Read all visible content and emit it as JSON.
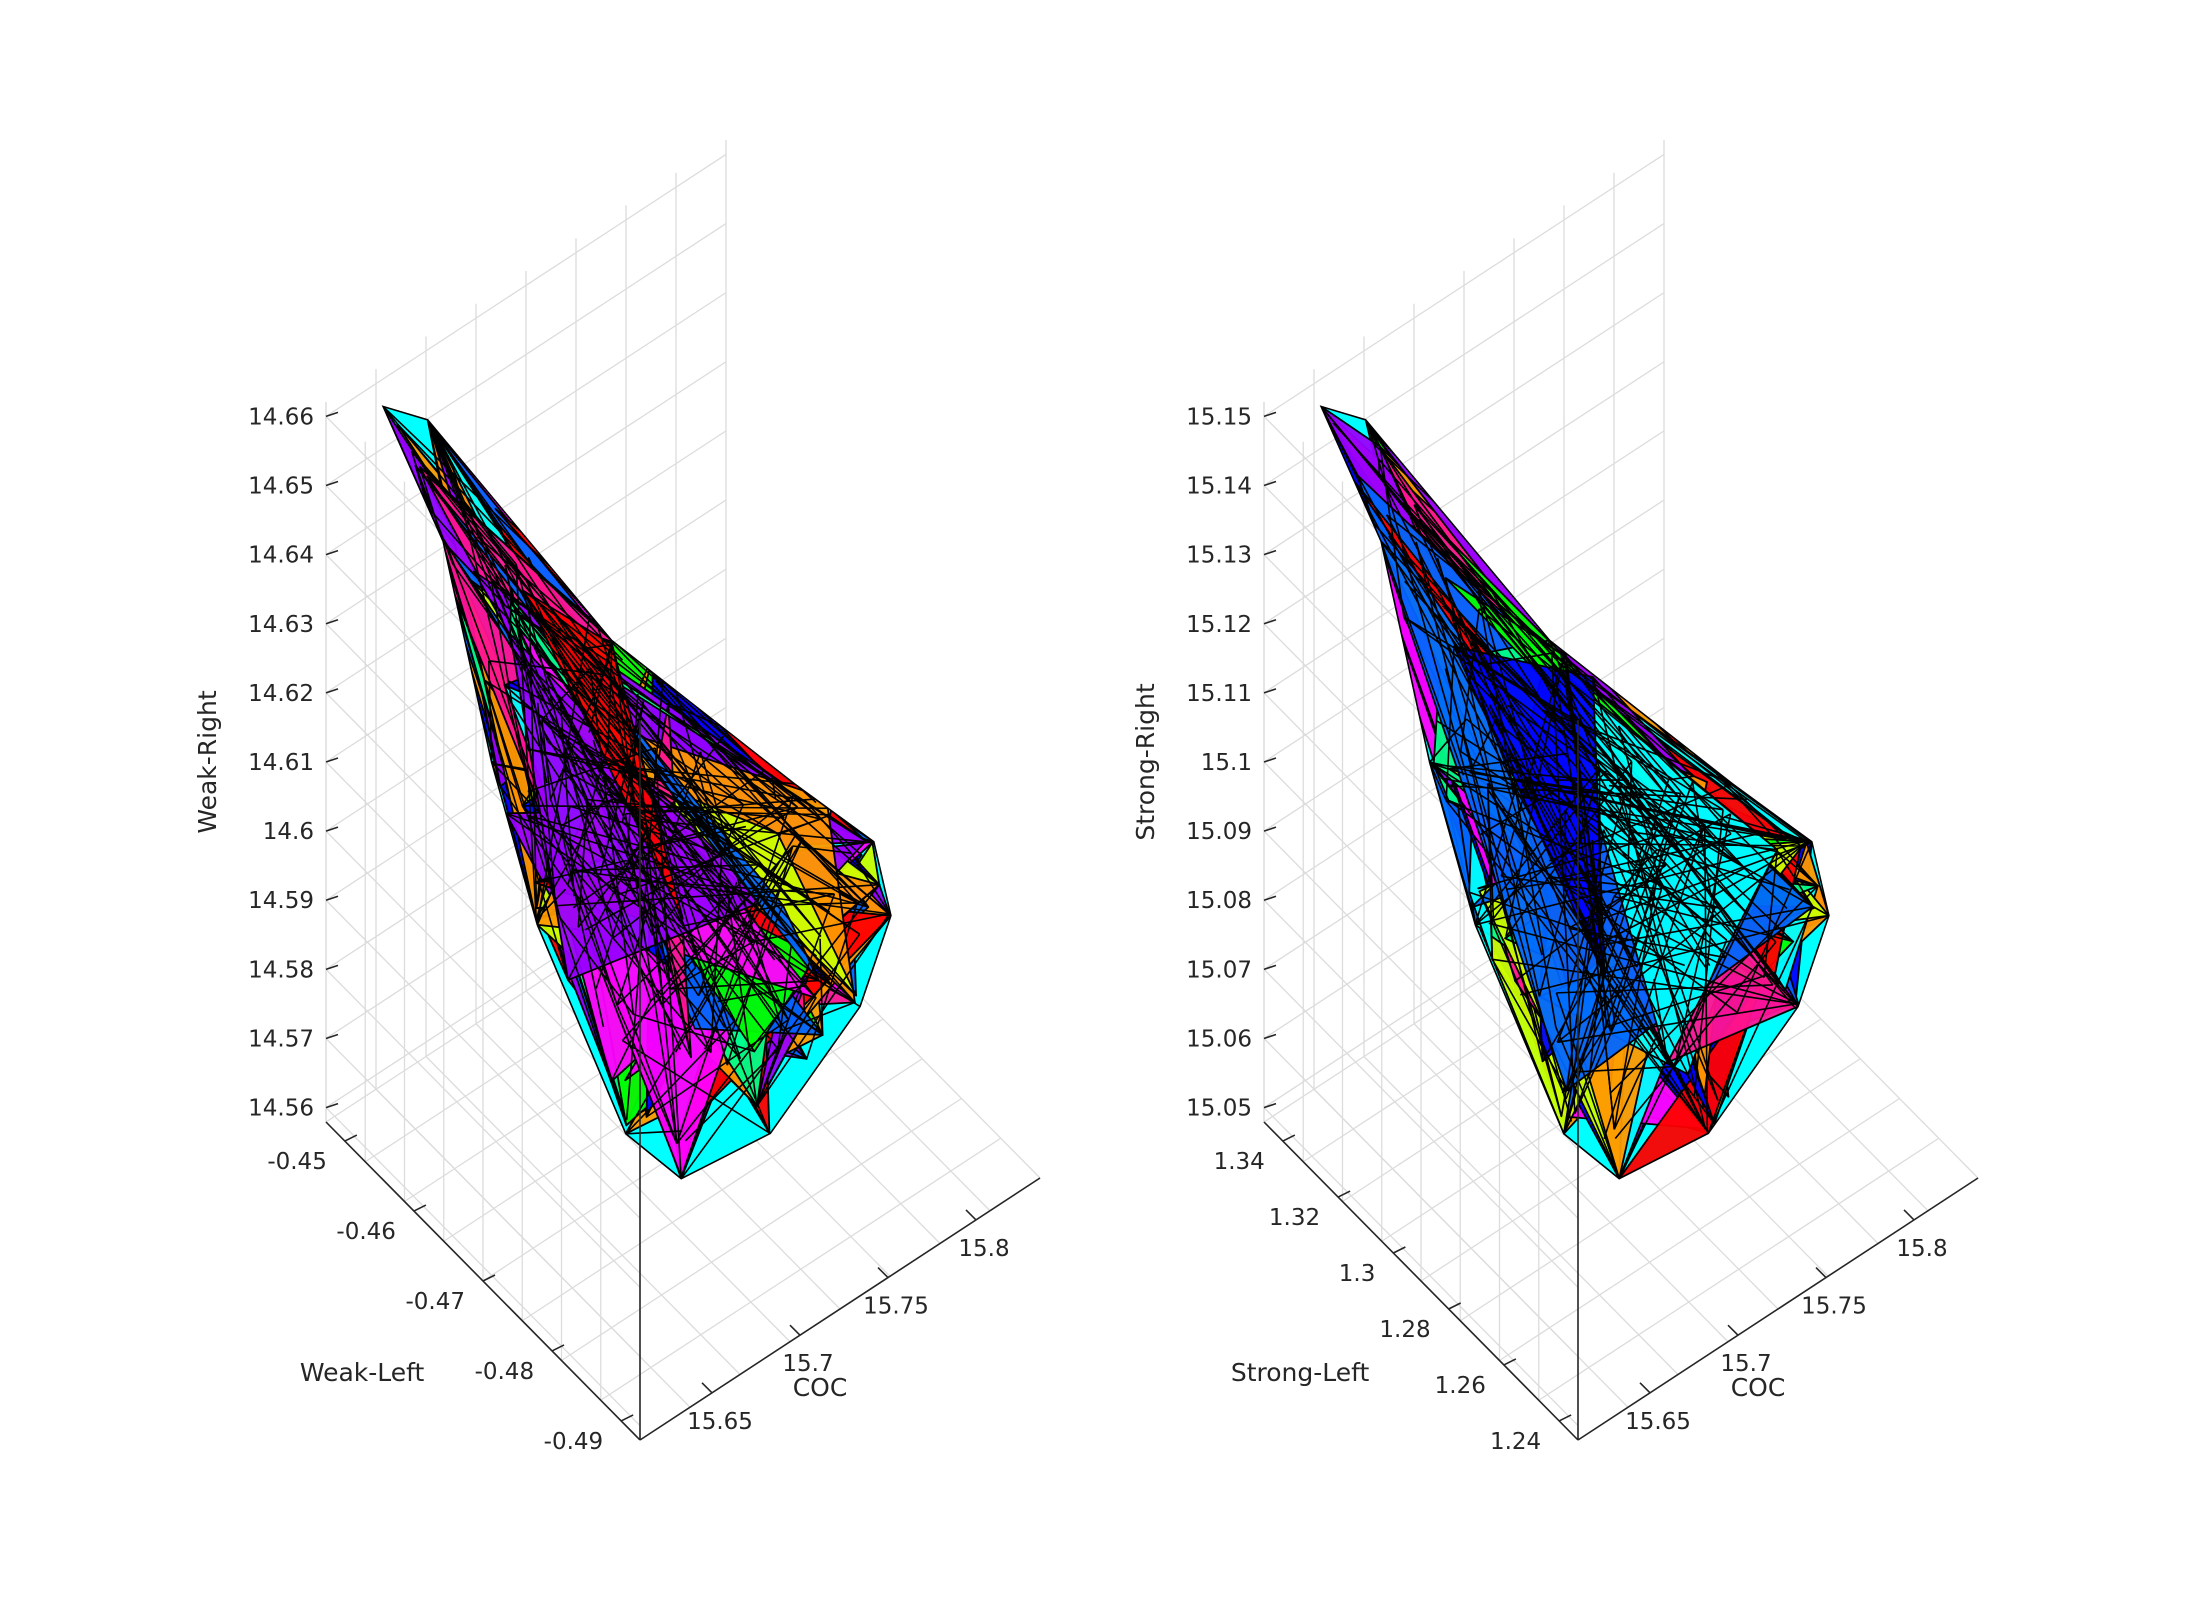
{
  "chart_data": [
    {
      "type": "3d-surface",
      "xlabel": "COC",
      "ylabel": "Weak-Left",
      "zlabel": "Weak-Right",
      "x_ticks": [
        "15.65",
        "15.7",
        "15.75",
        "15.8"
      ],
      "y_ticks": [
        "-0.45",
        "-0.46",
        "-0.47",
        "-0.48",
        "-0.49"
      ],
      "z_ticks": [
        "14.56",
        "14.57",
        "14.58",
        "14.59",
        "14.6",
        "14.61",
        "14.62",
        "14.63",
        "14.64",
        "14.65",
        "14.66"
      ],
      "zlim": [
        14.56,
        14.66
      ],
      "grid": true,
      "colors": [
        "#ff0000",
        "#00ff00",
        "#00ffff",
        "#0000ff",
        "#ff00ff",
        "#ff9900",
        "#ccff00",
        "#ff1493",
        "#9900ff",
        "#0066ff",
        "#00ff88"
      ]
    },
    {
      "type": "3d-surface",
      "xlabel": "COC",
      "ylabel": "Strong-Left",
      "zlabel": "Strong-Right",
      "x_ticks": [
        "15.65",
        "15.7",
        "15.75",
        "15.8"
      ],
      "y_ticks": [
        "1.34",
        "1.32",
        "1.3",
        "1.28",
        "1.26",
        "1.24"
      ],
      "z_ticks": [
        "15.05",
        "15.06",
        "15.07",
        "15.08",
        "15.09",
        "15.1",
        "15.11",
        "15.12",
        "15.13",
        "15.14",
        "15.15"
      ],
      "zlim": [
        15.05,
        15.15
      ],
      "grid": true,
      "colors": [
        "#ff0000",
        "#00ff00",
        "#00ffff",
        "#0000ff",
        "#ff00ff",
        "#ff9900",
        "#ccff00",
        "#ff1493",
        "#9900ff",
        "#0066ff",
        "#00ff88"
      ]
    }
  ]
}
